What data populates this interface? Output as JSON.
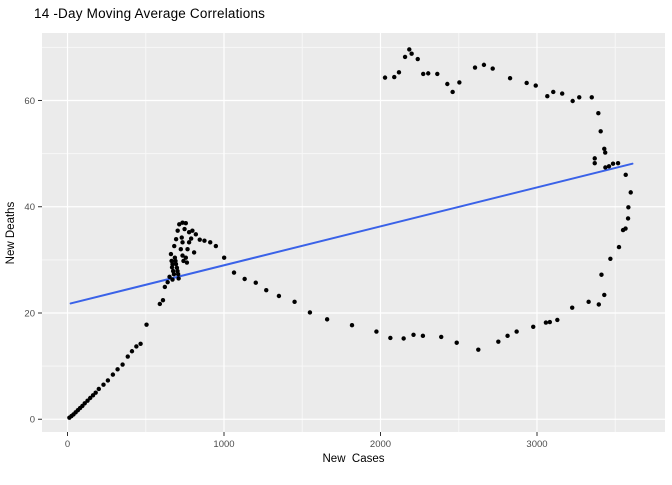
{
  "chart_data": {
    "type": "scatter",
    "title": "14 -Day Moving Average Correlations",
    "xlabel": "New  Cases",
    "ylabel": "New Deaths",
    "xlim": [
      -163,
      3818
    ],
    "ylim": [
      -2.4,
      72.7
    ],
    "x_major_ticks": [
      0,
      1000,
      2000,
      3000
    ],
    "x_minor_ticks": [
      500,
      1500,
      2500,
      3500
    ],
    "y_major_ticks": [
      0,
      20,
      40,
      60
    ],
    "y_minor_ticks": [
      10,
      30,
      50,
      70
    ],
    "grid": "on",
    "legend_position": "none",
    "colors": {
      "panel_background": "#EBEBEB",
      "grid_major": "#FFFFFF",
      "grid_minor": "#F7F7F7",
      "point": "#000000",
      "trend_line": "#3A62E8",
      "tick_mark": "#333333",
      "tick_label": "#4D4D4D",
      "axis_title": "#000000",
      "title": "#000000"
    },
    "trend_line": {
      "x1": 20,
      "y1": 21.8,
      "x2": 3610,
      "y2": 48.1
    },
    "points": [
      [
        12,
        0.3
      ],
      [
        25,
        0.6
      ],
      [
        38,
        0.9
      ],
      [
        52,
        1.3
      ],
      [
        66,
        1.7
      ],
      [
        80,
        2.1
      ],
      [
        95,
        2.5
      ],
      [
        110,
        3.0
      ],
      [
        128,
        3.5
      ],
      [
        145,
        4.0
      ],
      [
        163,
        4.5
      ],
      [
        180,
        5.0
      ],
      [
        200,
        5.7
      ],
      [
        230,
        6.5
      ],
      [
        258,
        7.3
      ],
      [
        290,
        8.4
      ],
      [
        320,
        9.4
      ],
      [
        352,
        10.3
      ],
      [
        385,
        11.8
      ],
      [
        412,
        12.8
      ],
      [
        440,
        13.7
      ],
      [
        467,
        14.2
      ],
      [
        505,
        17.8
      ],
      [
        590,
        21.7
      ],
      [
        610,
        22.4
      ],
      [
        622,
        24.9
      ],
      [
        640,
        25.8
      ],
      [
        652,
        26.8
      ],
      [
        661,
        31.1
      ],
      [
        665,
        29.8
      ],
      [
        668,
        28.6
      ],
      [
        671,
        26.3
      ],
      [
        671,
        29.2
      ],
      [
        675,
        27.9
      ],
      [
        680,
        27.3
      ],
      [
        682,
        32.6
      ],
      [
        686,
        30.4
      ],
      [
        690,
        29.8
      ],
      [
        693,
        29.2
      ],
      [
        694,
        33.9
      ],
      [
        699,
        28.5
      ],
      [
        703,
        27.9
      ],
      [
        704,
        35.5
      ],
      [
        707,
        27.3
      ],
      [
        710,
        26.5
      ],
      [
        714,
        36.7
      ],
      [
        724,
        32.0
      ],
      [
        730,
        34.2
      ],
      [
        735,
        30.8
      ],
      [
        735,
        33.3
      ],
      [
        735,
        37.0
      ],
      [
        741,
        29.8
      ],
      [
        748,
        35.8
      ],
      [
        756,
        30.4
      ],
      [
        756,
        36.9
      ],
      [
        763,
        29.5
      ],
      [
        767,
        32.0
      ],
      [
        777,
        33.3
      ],
      [
        777,
        35.2
      ],
      [
        790,
        34.0
      ],
      [
        798,
        35.5
      ],
      [
        809,
        31.4
      ],
      [
        820,
        34.8
      ],
      [
        845,
        33.8
      ],
      [
        875,
        33.6
      ],
      [
        912,
        33.3
      ],
      [
        948,
        32.6
      ],
      [
        1001,
        30.4
      ],
      [
        1064,
        27.6
      ],
      [
        1132,
        26.4
      ],
      [
        1203,
        25.7
      ],
      [
        1270,
        24.3
      ],
      [
        1351,
        23.2
      ],
      [
        1451,
        22.1
      ],
      [
        1549,
        20.1
      ],
      [
        1659,
        18.8
      ],
      [
        1818,
        17.7
      ],
      [
        1974,
        16.5
      ],
      [
        2063,
        15.3
      ],
      [
        2148,
        15.2
      ],
      [
        2211,
        15.9
      ],
      [
        2271,
        15.7
      ],
      [
        2388,
        15.5
      ],
      [
        2487,
        14.4
      ],
      [
        2625,
        13.1
      ],
      [
        2753,
        14.6
      ],
      [
        2812,
        15.7
      ],
      [
        2870,
        16.5
      ],
      [
        2976,
        17.4
      ],
      [
        3057,
        18.2
      ],
      [
        3082,
        18.3
      ],
      [
        3130,
        18.7
      ],
      [
        3225,
        21.0
      ],
      [
        3330,
        22.1
      ],
      [
        3395,
        21.6
      ],
      [
        3430,
        23.4
      ],
      [
        3412,
        27.2
      ],
      [
        3469,
        30.2
      ],
      [
        3524,
        32.4
      ],
      [
        3550,
        35.6
      ],
      [
        3566,
        35.9
      ],
      [
        3582,
        37.8
      ],
      [
        3584,
        39.9
      ],
      [
        3599,
        42.7
      ],
      [
        3567,
        46.0
      ],
      [
        3518,
        48.2
      ],
      [
        3486,
        48.1
      ],
      [
        3460,
        47.6
      ],
      [
        3437,
        47.4
      ],
      [
        3369,
        48.2
      ],
      [
        3369,
        49.1
      ],
      [
        3430,
        50.9
      ],
      [
        3436,
        50.2
      ],
      [
        3392,
        57.6
      ],
      [
        3407,
        54.2
      ],
      [
        3350,
        60.6
      ],
      [
        3270,
        60.6
      ],
      [
        3228,
        59.9
      ],
      [
        2029,
        64.3
      ],
      [
        2088,
        64.4
      ],
      [
        2118,
        65.3
      ],
      [
        2157,
        68.2
      ],
      [
        2184,
        69.6
      ],
      [
        2199,
        68.8
      ],
      [
        2238,
        67.8
      ],
      [
        2273,
        65.0
      ],
      [
        2305,
        65.1
      ],
      [
        2363,
        65.0
      ],
      [
        2427,
        63.1
      ],
      [
        2461,
        61.6
      ],
      [
        2504,
        63.4
      ],
      [
        2604,
        66.2
      ],
      [
        2661,
        66.7
      ],
      [
        2717,
        66.0
      ],
      [
        2828,
        64.2
      ],
      [
        2934,
        63.3
      ],
      [
        2992,
        62.8
      ],
      [
        3066,
        60.8
      ],
      [
        3104,
        61.6
      ],
      [
        3161,
        61.3
      ]
    ]
  }
}
